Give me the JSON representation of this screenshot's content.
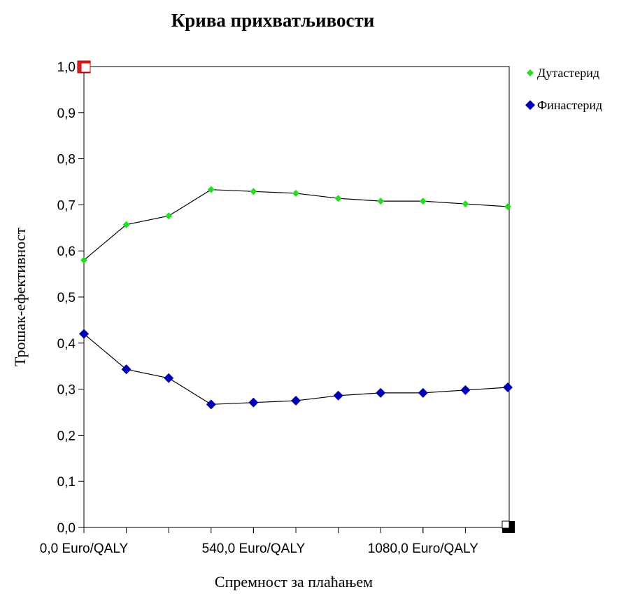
{
  "chart_data": {
    "type": "line",
    "title": "Крива прихватљивости",
    "x_label": "Спремност за плаћањем",
    "y_label": "Трошак-ефективност",
    "x": [
      0,
      135,
      270,
      405,
      540,
      675,
      810,
      945,
      1080,
      1215,
      1350
    ],
    "series": [
      {
        "name": "Дутастерид",
        "color": "#22dd22",
        "line_color": "#000000",
        "values": [
          0.58,
          0.657,
          0.676,
          0.733,
          0.729,
          0.725,
          0.714,
          0.708,
          0.708,
          0.702,
          0.696
        ]
      },
      {
        "name": "Финастерид",
        "color": "#0000b0",
        "line_color": "#000000",
        "values": [
          0.42,
          0.343,
          0.324,
          0.267,
          0.271,
          0.275,
          0.286,
          0.292,
          0.292,
          0.298,
          0.304
        ]
      }
    ],
    "xlim": [
      0,
      1350
    ],
    "ylim": [
      0,
      1
    ],
    "xticks": [
      {
        "value": 0,
        "label": "0,0 Euro/QALY"
      },
      {
        "value": 540,
        "label": "540,0 Euro/QALY"
      },
      {
        "value": 1080,
        "label": "1080,0 Euro/QALY"
      }
    ],
    "yticks": [
      {
        "value": 0,
        "label": "0,0"
      },
      {
        "value": 0.1,
        "label": "0,1"
      },
      {
        "value": 0.2,
        "label": "0,2"
      },
      {
        "value": 0.3,
        "label": "0,3"
      },
      {
        "value": 0.4,
        "label": "0,4"
      },
      {
        "value": 0.5,
        "label": "0,5"
      },
      {
        "value": 0.6,
        "label": "0,6"
      },
      {
        "value": 0.7,
        "label": "0,7"
      },
      {
        "value": 0.8,
        "label": "0,8"
      },
      {
        "value": 0.9,
        "label": "0,9"
      },
      {
        "value": 1,
        "label": "1,0"
      }
    ],
    "grid": false,
    "legend": "right"
  }
}
